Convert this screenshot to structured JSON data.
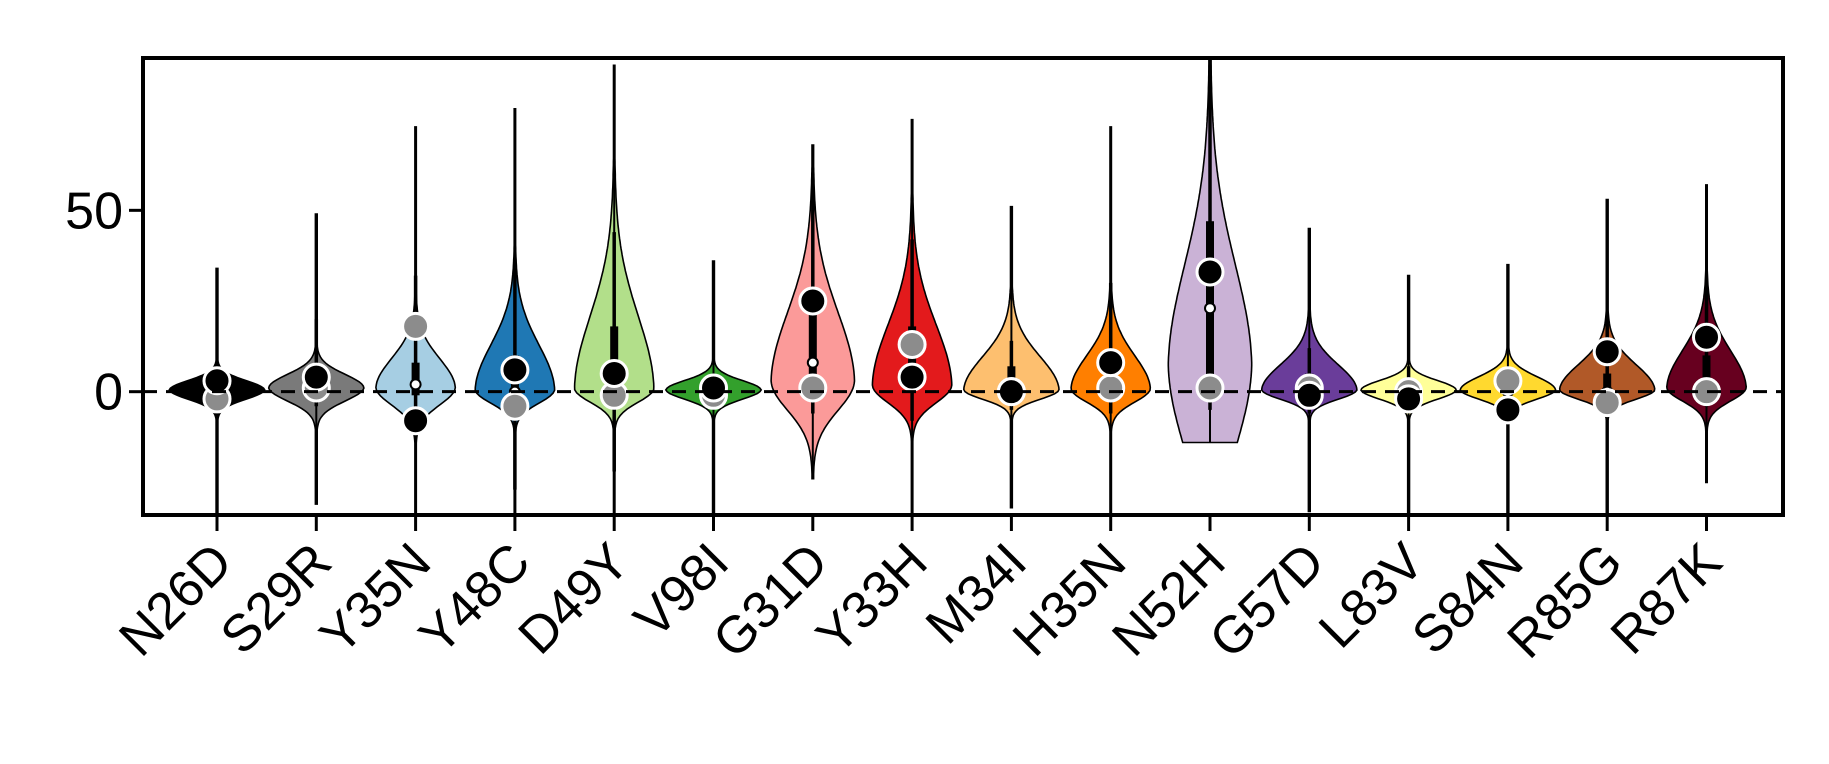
{
  "chart_data": {
    "type": "violin",
    "title": "",
    "xlabel": "",
    "ylabel": "",
    "ylim": [
      -34,
      92
    ],
    "yticks": [
      0,
      50
    ],
    "reference_line_y": 0,
    "categories": [
      "N26D",
      "S29R",
      "Y35N",
      "Y48C",
      "D49Y",
      "V98I",
      "G31D",
      "Y33H",
      "M34I",
      "H35N",
      "N52H",
      "G57D",
      "L83V",
      "S84N",
      "R85G",
      "R87K"
    ],
    "series": [
      {
        "category": "N26D",
        "color": "#000000",
        "max": 34,
        "min": -34,
        "median": 0,
        "q1": -1,
        "q3": 1,
        "whisker_low": -5,
        "whisker_high": 5,
        "point_black": 3,
        "point_gray": -2
      },
      {
        "category": "S29R",
        "color": "#7a7a7a",
        "max": 49,
        "min": -31,
        "median": 2,
        "q1": 0,
        "q3": 4,
        "whisker_low": -4,
        "whisker_high": 20,
        "point_black": 4,
        "point_gray": 1
      },
      {
        "category": "Y35N",
        "color": "#a6cee3",
        "max": 73,
        "min": -34,
        "median": 2,
        "q1": -1,
        "q3": 8,
        "whisker_low": -12,
        "whisker_high": 32,
        "point_black": -8,
        "point_gray": 18
      },
      {
        "category": "Y48C",
        "color": "#1f78b4",
        "max": 78,
        "min": -34,
        "median": 0,
        "q1": -2,
        "q3": 10,
        "whisker_low": -27,
        "whisker_high": 34,
        "point_black": 6,
        "point_gray": -4
      },
      {
        "category": "D49Y",
        "color": "#b2df8a",
        "max": 90,
        "min": -34,
        "median": 1,
        "q1": -1,
        "q3": 18,
        "whisker_low": -22,
        "whisker_high": 44,
        "point_black": 5,
        "point_gray": -1
      },
      {
        "category": "V98I",
        "color": "#33a02c",
        "max": 36,
        "min": -34,
        "median": 0,
        "q1": -1,
        "q3": 1,
        "whisker_low": -3,
        "whisker_high": 3,
        "point_black": 1,
        "point_gray": -1
      },
      {
        "category": "G31D",
        "color": "#fb9a99",
        "max": 68,
        "min": -24,
        "median": 8,
        "q1": 2,
        "q3": 24,
        "whisker_low": -6,
        "whisker_high": 60,
        "point_black": 25,
        "point_gray": 1
      },
      {
        "category": "Y33H",
        "color": "#e31a1c",
        "max": 75,
        "min": -34,
        "median": 4,
        "q1": 1,
        "q3": 18,
        "whisker_low": -8,
        "whisker_high": 42,
        "point_black": 4,
        "point_gray": 13
      },
      {
        "category": "M34I",
        "color": "#fdbf6f",
        "max": 51,
        "min": -32,
        "median": 0,
        "q1": -1,
        "q3": 7,
        "whisker_low": -5,
        "whisker_high": 14,
        "point_black": 0,
        "point_gray": 0
      },
      {
        "category": "H35N",
        "color": "#ff7f00",
        "max": 73,
        "min": -34,
        "median": 1,
        "q1": -1,
        "q3": 8,
        "whisker_low": -6,
        "whisker_high": 30,
        "point_black": 8,
        "point_gray": 1
      },
      {
        "category": "N52H",
        "color": "#cab2d6",
        "max": 92,
        "min": -14,
        "median": 23,
        "q1": 3,
        "q3": 47,
        "whisker_low": -5,
        "whisker_high": 92,
        "point_black": 33,
        "point_gray": 1
      },
      {
        "category": "G57D",
        "color": "#6a3d9a",
        "max": 45,
        "min": -33,
        "median": 0,
        "q1": -1,
        "q3": 5,
        "whisker_low": -6,
        "whisker_high": 12,
        "point_black": -1,
        "point_gray": 1
      },
      {
        "category": "L83V",
        "color": "#ffff99",
        "max": 32,
        "min": -34,
        "median": 0,
        "q1": -1,
        "q3": 1,
        "whisker_low": -4,
        "whisker_high": 7,
        "point_black": -2,
        "point_gray": 0
      },
      {
        "category": "S84N",
        "color": "#ffd92f",
        "max": 35,
        "min": -34,
        "median": 0,
        "q1": -1,
        "q3": 2,
        "whisker_low": -4,
        "whisker_high": 6,
        "point_black": -5,
        "point_gray": 3
      },
      {
        "category": "R85G",
        "color": "#b15928",
        "max": 53,
        "min": -34,
        "median": 0,
        "q1": -1,
        "q3": 5,
        "whisker_low": -6,
        "whisker_high": 20,
        "point_black": 11,
        "point_gray": -3
      },
      {
        "category": "R87K",
        "color": "#67001f",
        "max": 57,
        "min": -25,
        "median": 2,
        "q1": 0,
        "q3": 10,
        "whisker_low": -4,
        "whisker_high": 28,
        "point_black": 15,
        "point_gray": 0
      }
    ]
  }
}
